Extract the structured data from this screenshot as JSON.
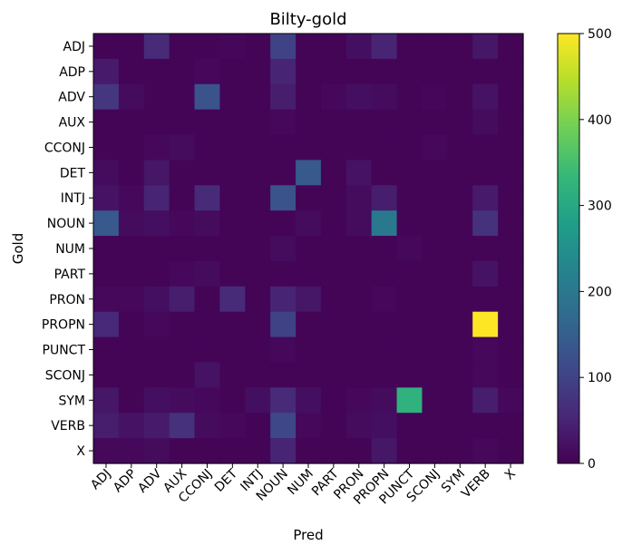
{
  "chart_data": {
    "type": "heatmap",
    "title": "Bilty-gold",
    "xlabel": "Pred",
    "ylabel": "Gold",
    "x_categories": [
      "ADJ",
      "ADP",
      "ADV",
      "AUX",
      "CCONJ",
      "DET",
      "INTJ",
      "NOUN",
      "NUM",
      "PART",
      "PRON",
      "PROPN",
      "PUNCT",
      "SCONJ",
      "SYM",
      "VERB",
      "X"
    ],
    "y_categories": [
      "ADJ",
      "ADP",
      "ADV",
      "AUX",
      "CCONJ",
      "DET",
      "INTJ",
      "NOUN",
      "NUM",
      "PART",
      "PRON",
      "PROPN",
      "PUNCT",
      "SCONJ",
      "SYM",
      "VERB",
      "X"
    ],
    "vmin": 0,
    "vmax": 500,
    "colorbar_ticks": [
      0,
      100,
      200,
      300,
      400,
      500
    ],
    "colormap": [
      "#440154",
      "#482878",
      "#3e4989",
      "#31688e",
      "#26828e",
      "#1f9e89",
      "#35b779",
      "#6ece58",
      "#b5de2b",
      "#fde725"
    ],
    "matrix": [
      [
        5,
        5,
        60,
        5,
        5,
        8,
        5,
        100,
        5,
        5,
        20,
        50,
        5,
        5,
        5,
        30,
        5
      ],
      [
        35,
        5,
        5,
        5,
        10,
        5,
        5,
        50,
        5,
        5,
        5,
        5,
        5,
        5,
        5,
        5,
        5
      ],
      [
        80,
        15,
        5,
        5,
        130,
        5,
        5,
        40,
        5,
        10,
        20,
        15,
        5,
        8,
        5,
        25,
        5
      ],
      [
        5,
        5,
        5,
        5,
        5,
        5,
        5,
        10,
        5,
        5,
        5,
        5,
        5,
        5,
        5,
        15,
        5
      ],
      [
        5,
        5,
        10,
        15,
        5,
        5,
        5,
        5,
        5,
        5,
        5,
        5,
        5,
        10,
        5,
        5,
        5
      ],
      [
        15,
        5,
        30,
        5,
        5,
        5,
        5,
        5,
        140,
        5,
        25,
        5,
        5,
        5,
        5,
        5,
        5
      ],
      [
        25,
        10,
        50,
        5,
        60,
        5,
        5,
        130,
        5,
        5,
        15,
        40,
        5,
        5,
        5,
        35,
        5
      ],
      [
        140,
        15,
        20,
        10,
        15,
        5,
        5,
        5,
        15,
        5,
        15,
        200,
        5,
        5,
        5,
        70,
        5
      ],
      [
        5,
        5,
        5,
        5,
        5,
        5,
        5,
        15,
        5,
        5,
        5,
        5,
        10,
        5,
        5,
        5,
        5
      ],
      [
        5,
        5,
        5,
        10,
        15,
        5,
        5,
        5,
        5,
        5,
        5,
        5,
        5,
        5,
        5,
        25,
        5
      ],
      [
        10,
        10,
        20,
        40,
        5,
        60,
        5,
        50,
        30,
        5,
        5,
        10,
        5,
        5,
        5,
        5,
        5
      ],
      [
        55,
        5,
        10,
        5,
        5,
        5,
        5,
        100,
        5,
        5,
        5,
        5,
        5,
        5,
        5,
        500,
        5
      ],
      [
        5,
        5,
        5,
        5,
        5,
        5,
        5,
        10,
        5,
        5,
        5,
        5,
        5,
        5,
        5,
        10,
        5
      ],
      [
        5,
        5,
        5,
        5,
        25,
        5,
        5,
        5,
        5,
        5,
        5,
        5,
        5,
        5,
        5,
        10,
        5
      ],
      [
        30,
        5,
        20,
        15,
        10,
        5,
        20,
        60,
        20,
        5,
        10,
        15,
        320,
        5,
        5,
        40,
        10
      ],
      [
        40,
        25,
        35,
        70,
        15,
        10,
        5,
        110,
        10,
        5,
        15,
        20,
        5,
        5,
        5,
        5,
        5
      ],
      [
        10,
        10,
        15,
        5,
        5,
        5,
        5,
        50,
        5,
        5,
        5,
        30,
        5,
        5,
        5,
        10,
        5
      ]
    ]
  }
}
